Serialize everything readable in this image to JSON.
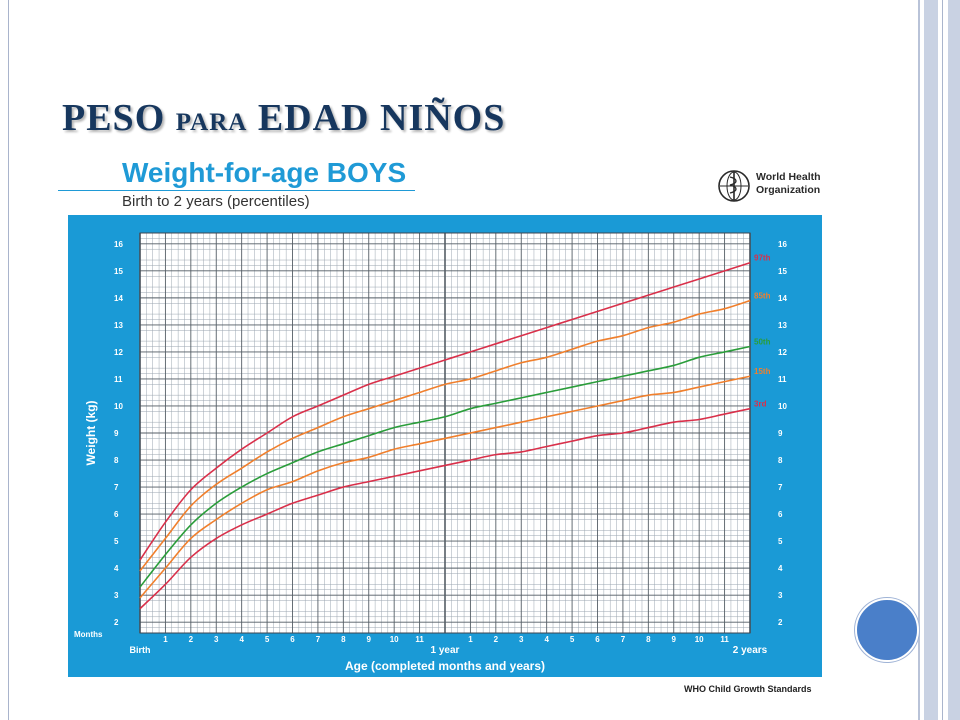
{
  "slide": {
    "title_main": "PESO ",
    "title_small": "PARA",
    "title_end": " EDAD NIÑOS"
  },
  "who": {
    "line1": "World Health",
    "line2": "Organization",
    "icon": "who-emblem-icon"
  },
  "footer": "WHO Child Growth Standards",
  "colors": {
    "panel": "#1a9ad6",
    "grid_bg": "#ffffff",
    "p97": "#d9304a",
    "p85": "#f07f2c",
    "p50": "#2a9d3a",
    "p15": "#f07f2c",
    "p3": "#d9304a",
    "title_blue": "#1f9ad6",
    "slide_title": "#17375e"
  },
  "chart_data": {
    "type": "line",
    "title": "Weight-for-age BOYS",
    "subtitle": "Birth to 2 years (percentiles)",
    "xlabel": "Age (completed months and years)",
    "ylabel": "Weight (kg)",
    "x_units_label": "Months",
    "x_tick_labels": [
      "Birth",
      "1",
      "2",
      "3",
      "4",
      "5",
      "6",
      "7",
      "8",
      "9",
      "10",
      "11",
      "1 year",
      "1",
      "2",
      "3",
      "4",
      "5",
      "6",
      "7",
      "8",
      "9",
      "10",
      "11",
      "2 years"
    ],
    "y_ticks": [
      2,
      3,
      4,
      5,
      6,
      7,
      8,
      9,
      10,
      11,
      12,
      13,
      14,
      15,
      16
    ],
    "xlim": [
      0,
      24
    ],
    "ylim": [
      1.6,
      16.4
    ],
    "grid": true,
    "legend": "right-end labels",
    "x": [
      0,
      1,
      2,
      3,
      4,
      5,
      6,
      7,
      8,
      9,
      10,
      11,
      12,
      13,
      14,
      15,
      16,
      17,
      18,
      19,
      20,
      21,
      22,
      23,
      24
    ],
    "series": [
      {
        "name": "97th",
        "color": "#d9304a",
        "values": [
          4.3,
          5.7,
          6.9,
          7.7,
          8.4,
          9.0,
          9.6,
          10.0,
          10.4,
          10.8,
          11.1,
          11.4,
          11.7,
          12.0,
          12.3,
          12.6,
          12.9,
          13.2,
          13.5,
          13.8,
          14.1,
          14.4,
          14.7,
          15.0,
          15.3
        ]
      },
      {
        "name": "85th",
        "color": "#f07f2c",
        "values": [
          3.9,
          5.1,
          6.3,
          7.1,
          7.7,
          8.3,
          8.8,
          9.2,
          9.6,
          9.9,
          10.2,
          10.5,
          10.8,
          11.0,
          11.3,
          11.6,
          11.8,
          12.1,
          12.4,
          12.6,
          12.9,
          13.1,
          13.4,
          13.6,
          13.9
        ]
      },
      {
        "name": "50th",
        "color": "#2a9d3a",
        "values": [
          3.3,
          4.5,
          5.6,
          6.4,
          7.0,
          7.5,
          7.9,
          8.3,
          8.6,
          8.9,
          9.2,
          9.4,
          9.6,
          9.9,
          10.1,
          10.3,
          10.5,
          10.7,
          10.9,
          11.1,
          11.3,
          11.5,
          11.8,
          12.0,
          12.2
        ]
      },
      {
        "name": "15th",
        "color": "#f07f2c",
        "values": [
          2.9,
          4.0,
          5.1,
          5.8,
          6.4,
          6.9,
          7.2,
          7.6,
          7.9,
          8.1,
          8.4,
          8.6,
          8.8,
          9.0,
          9.2,
          9.4,
          9.6,
          9.8,
          10.0,
          10.2,
          10.4,
          10.5,
          10.7,
          10.9,
          11.1
        ]
      },
      {
        "name": "3rd",
        "color": "#d9304a",
        "values": [
          2.5,
          3.4,
          4.4,
          5.1,
          5.6,
          6.0,
          6.4,
          6.7,
          7.0,
          7.2,
          7.4,
          7.6,
          7.8,
          8.0,
          8.2,
          8.3,
          8.5,
          8.7,
          8.9,
          9.0,
          9.2,
          9.4,
          9.5,
          9.7,
          9.9
        ]
      }
    ]
  }
}
